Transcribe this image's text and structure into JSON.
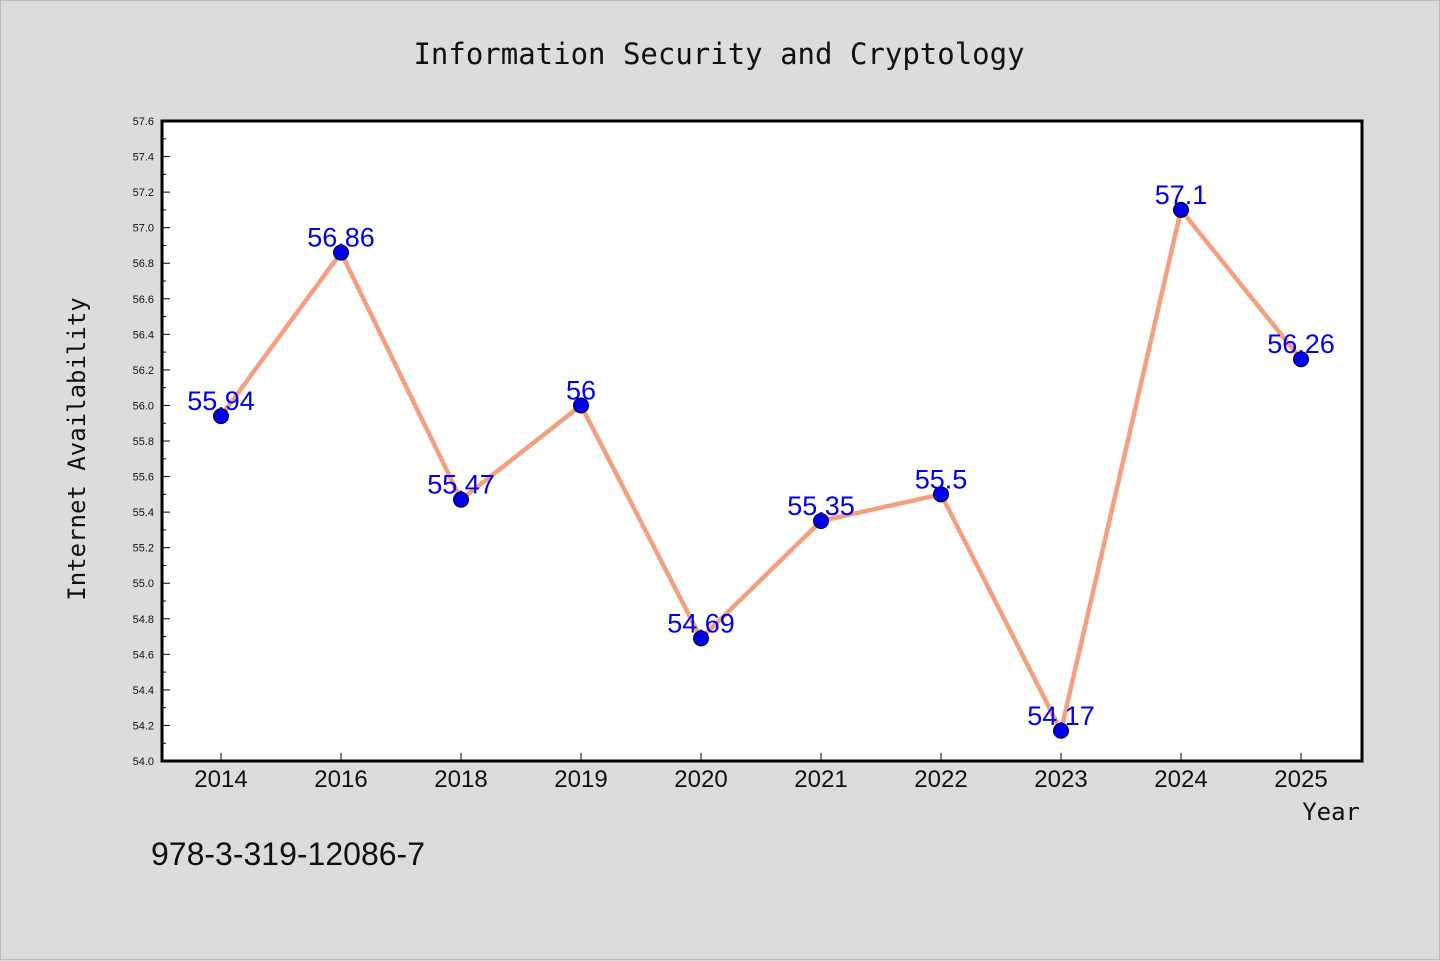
{
  "chart_data": {
    "type": "line",
    "title": "Information Security and Cryptology",
    "xlabel": "Year",
    "ylabel": "Internet Availability",
    "categories": [
      "2014",
      "2016",
      "2018",
      "2019",
      "2020",
      "2021",
      "2022",
      "2023",
      "2024",
      "2025"
    ],
    "series": [
      {
        "values": [
          55.94,
          56.86,
          55.47,
          56,
          54.69,
          55.35,
          55.5,
          54.17,
          57.1,
          56.26
        ]
      }
    ],
    "data_labels": [
      "55.94",
      "56.86",
      "55.47",
      "56",
      "54.69",
      "55.35",
      "55.5",
      "54.17",
      "57.1",
      "56.26"
    ],
    "ylim": [
      54.0,
      57.6
    ],
    "yticks": [
      "54.0",
      "54.2",
      "54.4",
      "54.6",
      "54.8",
      "55.0",
      "55.2",
      "55.4",
      "55.6",
      "55.8",
      "56.0",
      "56.2",
      "56.4",
      "56.6",
      "56.8",
      "57.0",
      "57.2",
      "57.4",
      "57.6"
    ],
    "grid": false,
    "line_color": "#f4a080",
    "marker_color": "#0000ee",
    "label_color": "#0000ee",
    "plot_background": "#ffffff",
    "page_background": "#dcdcdc"
  },
  "footer": {
    "isbn": "978-3-319-12086-7"
  }
}
